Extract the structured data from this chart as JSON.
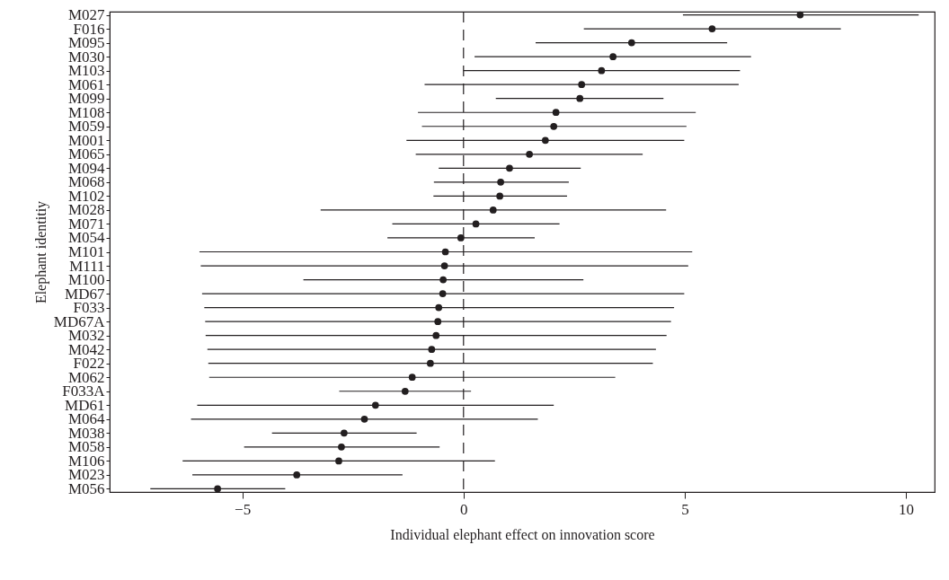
{
  "chart_data": {
    "type": "scatter",
    "orientation": "horizontal",
    "xlabel": "Individual elephant effect on innovation score",
    "ylabel": "Elephant identitiy",
    "categories": [
      "M027",
      "F016",
      "M095",
      "M030",
      "M103",
      "M061",
      "M099",
      "M108",
      "M059",
      "M001",
      "M065",
      "M094",
      "M068",
      "M102",
      "M028",
      "M071",
      "M054",
      "M101",
      "M111",
      "M100",
      "MD67",
      "F033",
      "MD67A",
      "M032",
      "M042",
      "F022",
      "M062",
      "F033A",
      "MD61",
      "M064",
      "M038",
      "M058",
      "M106",
      "M023",
      "M056"
    ],
    "values": [
      7.61,
      5.62,
      3.8,
      3.38,
      3.12,
      2.67,
      2.63,
      2.09,
      2.04,
      1.85,
      1.49,
      1.04,
      0.84,
      0.82,
      0.67,
      0.28,
      -0.06,
      -0.41,
      -0.43,
      -0.46,
      -0.47,
      -0.56,
      -0.58,
      -0.62,
      -0.72,
      -0.75,
      -1.16,
      -1.32,
      -1.99,
      -2.24,
      -2.7,
      -2.76,
      -2.82,
      -3.77,
      -5.56
    ],
    "errors": [
      [
        4.96,
        10.29
      ],
      [
        2.72,
        8.53
      ],
      [
        1.63,
        5.96
      ],
      [
        0.25,
        6.5
      ],
      [
        0.0,
        6.25
      ],
      [
        -0.88,
        6.22
      ],
      [
        0.73,
        4.52
      ],
      [
        -1.03,
        5.25
      ],
      [
        -0.94,
        5.04
      ],
      [
        -1.29,
        4.99
      ],
      [
        -1.08,
        4.05
      ],
      [
        -0.56,
        2.65
      ],
      [
        -0.67,
        2.38
      ],
      [
        -0.68,
        2.34
      ],
      [
        -3.23,
        4.58
      ],
      [
        -1.61,
        2.17
      ],
      [
        -1.72,
        1.61
      ],
      [
        -5.97,
        5.17
      ],
      [
        -5.94,
        5.08
      ],
      [
        -3.62,
        2.71
      ],
      [
        -5.91,
        4.99
      ],
      [
        -5.86,
        4.76
      ],
      [
        -5.84,
        4.69
      ],
      [
        -5.83,
        4.59
      ],
      [
        -5.79,
        4.35
      ],
      [
        -5.77,
        4.28
      ],
      [
        -5.75,
        3.43
      ],
      [
        -2.81,
        0.17
      ],
      [
        -6.02,
        2.04
      ],
      [
        -6.16,
        1.68
      ],
      [
        -4.33,
        -1.06
      ],
      [
        -4.96,
        -0.54
      ],
      [
        -6.35,
        0.71
      ],
      [
        -6.13,
        -1.38
      ],
      [
        -7.08,
        -4.03
      ]
    ],
    "color": "#231f20",
    "marker": "circle",
    "xlim": [
      -8,
      10.65
    ],
    "xticks": [
      {
        "value": -5,
        "label": "−5"
      },
      0,
      5,
      10
    ],
    "ref_lines": [
      {
        "axis": "x",
        "value": 0,
        "line_style": "dashed"
      }
    ]
  }
}
